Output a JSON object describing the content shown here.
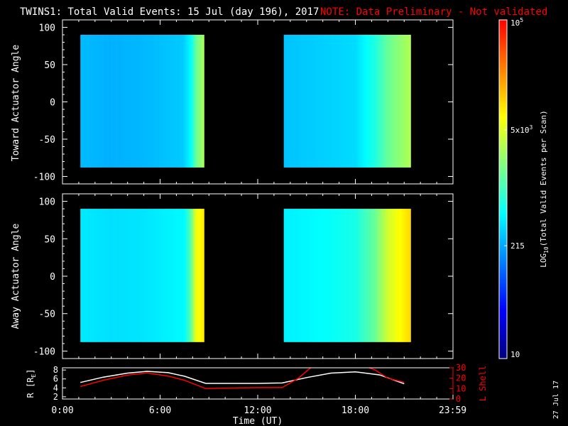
{
  "header": {
    "title": "TWINS1: Total Valid Events: 15 Jul (day 196), 2017",
    "note": "NOTE: Data Preliminary - Not validated"
  },
  "side_date": "27 Jul 17",
  "colors": {
    "background": "#000000",
    "axis": "#ffffff",
    "note": "#ff0000",
    "lshell": "#ff0000",
    "radius": "#ffffff"
  },
  "colorbar": {
    "label": "LOG10(Total Valid Events per Scan)",
    "label_main": "LOG",
    "label_sub": "10",
    "label_rest": "(Total Valid Events per Scan)",
    "scale": "log",
    "range": [
      10,
      100000
    ],
    "ticks": [
      {
        "value": 10,
        "text": "10"
      },
      {
        "value": 215,
        "text": "215"
      },
      {
        "value": 5000,
        "text": "5x10",
        "sup": "3"
      },
      {
        "value": 100000,
        "text": "10",
        "sup": "5"
      }
    ],
    "stops": [
      "#00007f",
      "#0000ff",
      "#0080ff",
      "#00ffff",
      "#80ff80",
      "#ffff00",
      "#ff8000",
      "#ff0000"
    ]
  },
  "chart_data": [
    {
      "type": "heatmap",
      "panel": "toward",
      "ylabel": "Toward Actuator Angle",
      "xlim": [
        0,
        24
      ],
      "ylim": [
        -110,
        110
      ],
      "yticks": [
        100,
        50,
        0,
        -50,
        -100
      ],
      "blocks": [
        {
          "t_start": 1.1,
          "t_end": 8.7,
          "angle_range": [
            -88,
            90
          ],
          "profile": [
            [
              1.1,
              260
            ],
            [
              3.0,
              230
            ],
            [
              5.0,
              250
            ],
            [
              7.4,
              300
            ],
            [
              7.9,
              520
            ],
            [
              8.2,
              1500
            ],
            [
              8.7,
              3000
            ]
          ]
        },
        {
          "t_start": 13.6,
          "t_end": 21.4,
          "angle_range": [
            -88,
            90
          ],
          "profile": [
            [
              13.6,
              280
            ],
            [
              16.0,
              320
            ],
            [
              18.0,
              360
            ],
            [
              19.2,
              700
            ],
            [
              20.0,
              1500
            ],
            [
              21.4,
              3200
            ]
          ]
        }
      ]
    },
    {
      "type": "heatmap",
      "panel": "away",
      "ylabel": "Away Actuator Angle",
      "xlim": [
        0,
        24
      ],
      "ylim": [
        -110,
        110
      ],
      "yticks": [
        100,
        50,
        0,
        -50,
        -100
      ],
      "blocks": [
        {
          "t_start": 1.1,
          "t_end": 8.7,
          "angle_range": [
            -88,
            90
          ],
          "profile": [
            [
              1.1,
              420
            ],
            [
              3.0,
              380
            ],
            [
              5.0,
              400
            ],
            [
              7.5,
              500
            ],
            [
              7.9,
              1400
            ],
            [
              8.2,
              6000
            ],
            [
              8.7,
              9000
            ]
          ]
        },
        {
          "t_start": 13.6,
          "t_end": 21.4,
          "angle_range": [
            -88,
            90
          ],
          "profile": [
            [
              13.6,
              450
            ],
            [
              16.0,
              520
            ],
            [
              18.0,
              650
            ],
            [
              19.2,
              1500
            ],
            [
              20.0,
              4500
            ],
            [
              21.4,
              11000
            ]
          ]
        }
      ]
    },
    {
      "type": "line",
      "panel": "ephemeris",
      "xlabel": "Time (UT)",
      "xticks": [
        {
          "value": 0,
          "text": "0:00"
        },
        {
          "value": 6,
          "text": "6:00"
        },
        {
          "value": 12,
          "text": "12:00"
        },
        {
          "value": 18,
          "text": "18:00"
        },
        {
          "value": 23.98,
          "text": "23:59"
        }
      ],
      "xlim": [
        0,
        24
      ],
      "left_axis": {
        "label": "R [RE]",
        "ylim": [
          1.5,
          8.5
        ],
        "ticks": [
          2,
          4,
          6,
          8
        ]
      },
      "right_axis": {
        "label": "L Shell",
        "ylim": [
          0,
          30
        ],
        "ticks": [
          0,
          10,
          20,
          30
        ]
      },
      "series": [
        {
          "axis": "left",
          "color": "#ffffff",
          "x": [
            1.1,
            2.5,
            4.0,
            5.2,
            6.5,
            7.5,
            8.8,
            10.0,
            12.0,
            13.5,
            15.0,
            16.5,
            18.0,
            19.5,
            21.0
          ],
          "y": [
            5.2,
            6.4,
            7.3,
            7.7,
            7.4,
            6.6,
            5.0,
            5.0,
            5.0,
            5.1,
            6.3,
            7.3,
            7.6,
            6.9,
            4.9
          ]
        },
        {
          "axis": "right",
          "color": "#ff0000",
          "x": [
            1.1,
            2.5,
            4.0,
            5.2,
            6.5,
            7.5,
            8.8,
            10.0,
            12.0,
            13.5,
            14.5,
            15.4,
            15.8,
            18.5,
            19.2,
            20.0,
            21.0
          ],
          "y": [
            12,
            18,
            23,
            25,
            22,
            18,
            10,
            10.5,
            11,
            11,
            20,
            32,
            32,
            32,
            28,
            20,
            16
          ]
        }
      ]
    }
  ]
}
